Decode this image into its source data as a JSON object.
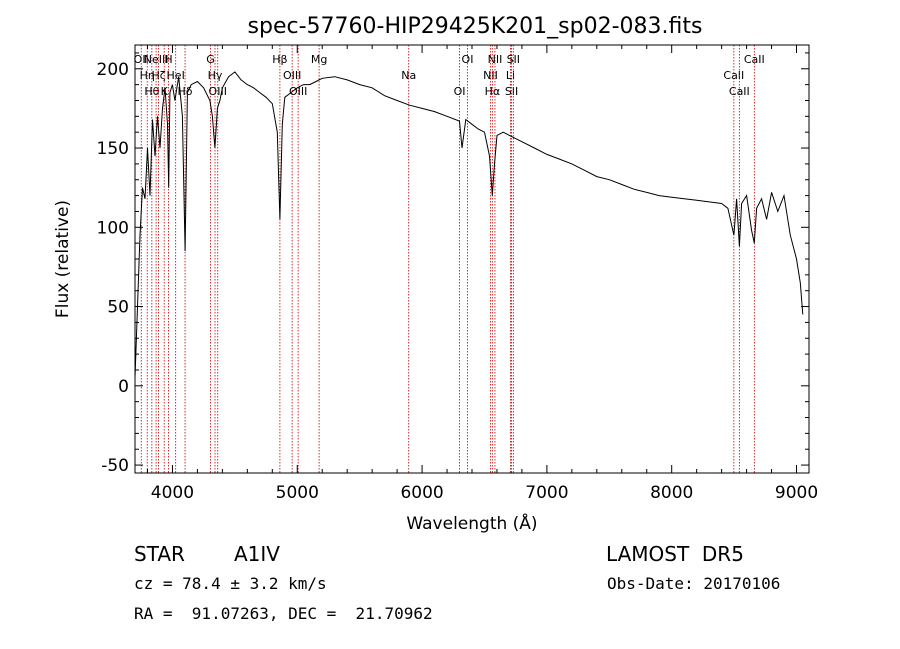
{
  "chart_data": {
    "type": "line",
    "title": "spec-57760-HIP29425K201_sp02-083.fits",
    "xlabel": "Wavelength (Å)",
    "ylabel": "Flux (relative)",
    "xlim": [
      3700,
      9100
    ],
    "ylim": [
      -55,
      215
    ],
    "xticks": [
      4000,
      5000,
      6000,
      7000,
      8000,
      9000
    ],
    "yticks": [
      -50,
      0,
      50,
      100,
      150,
      200
    ],
    "x_tick_labels": [
      "4000",
      "5000",
      "6000",
      "7000",
      "8000",
      "9000"
    ],
    "y_tick_labels": [
      "-50",
      "0",
      "50",
      "100",
      "150",
      "200"
    ],
    "grid": false,
    "line_color": "#000000",
    "marker_color": "#c00000",
    "series": [
      {
        "x": [
          3700,
          3720,
          3740,
          3760,
          3780,
          3800,
          3820,
          3840,
          3860,
          3880,
          3900,
          3920,
          3940,
          3960,
          3970,
          3980,
          4000,
          4020,
          4050,
          4080,
          4101,
          4120,
          4150,
          4200,
          4250,
          4300,
          4320,
          4340,
          4360,
          4380,
          4400,
          4450,
          4500,
          4550,
          4600,
          4650,
          4700,
          4750,
          4800,
          4840,
          4861,
          4880,
          4900,
          4950,
          5000,
          5050,
          5100,
          5150,
          5200,
          5300,
          5400,
          5500,
          5600,
          5700,
          5800,
          5900,
          6000,
          6100,
          6200,
          6300,
          6320,
          6350,
          6400,
          6450,
          6500,
          6540,
          6563,
          6580,
          6600,
          6650,
          6700,
          6800,
          6900,
          7000,
          7100,
          7200,
          7300,
          7400,
          7500,
          7600,
          7700,
          7800,
          7900,
          8000,
          8100,
          8200,
          8300,
          8400,
          8450,
          8498,
          8520,
          8542,
          8560,
          8600,
          8640,
          8662,
          8680,
          8720,
          8760,
          8800,
          8850,
          8900,
          8950,
          9000,
          9030,
          9050
        ],
        "y": [
          5,
          50,
          95,
          125,
          118,
          150,
          120,
          168,
          145,
          170,
          150,
          175,
          188,
          165,
          125,
          185,
          190,
          180,
          195,
          170,
          85,
          185,
          190,
          192,
          188,
          180,
          170,
          150,
          175,
          180,
          188,
          195,
          198,
          193,
          190,
          188,
          185,
          182,
          178,
          160,
          105,
          165,
          182,
          185,
          188,
          190,
          190,
          192,
          194,
          195,
          193,
          190,
          188,
          183,
          180,
          177,
          175,
          173,
          170,
          167,
          150,
          168,
          165,
          162,
          160,
          145,
          120,
          140,
          158,
          160,
          158,
          154,
          150,
          146,
          143,
          140,
          136,
          132,
          130,
          127,
          124,
          122,
          120,
          119,
          118,
          117,
          116,
          115,
          112,
          95,
          118,
          88,
          115,
          120,
          98,
          90,
          112,
          118,
          105,
          122,
          110,
          120,
          95,
          80,
          65,
          45
        ]
      }
    ],
    "line_markers": [
      {
        "wl": 3750,
        "label": "OII"
      },
      {
        "wl": 3798,
        "label": "Hη"
      },
      {
        "wl": 3835,
        "label": "Hθ"
      },
      {
        "wl": 3869,
        "label": "NeIII"
      },
      {
        "wl": 3889,
        "label": "Hζ"
      },
      {
        "wl": 3934,
        "label": "K"
      },
      {
        "wl": 3969,
        "label": "H"
      },
      {
        "wl": 4026,
        "label": "HeI"
      },
      {
        "wl": 4101,
        "label": "Hδ"
      },
      {
        "wl": 4305,
        "label": "G"
      },
      {
        "wl": 4341,
        "label": "Hγ"
      },
      {
        "wl": 4363,
        "label": "OIII"
      },
      {
        "wl": 4861,
        "label": "Hβ"
      },
      {
        "wl": 4959,
        "label": "OIII"
      },
      {
        "wl": 5007,
        "label": "OIII"
      },
      {
        "wl": 5175,
        "label": "Mg"
      },
      {
        "wl": 5893,
        "label": "Na"
      },
      {
        "wl": 6300,
        "label": "OI"
      },
      {
        "wl": 6364,
        "label": "OI"
      },
      {
        "wl": 6548,
        "label": "NII"
      },
      {
        "wl": 6563,
        "label": "Hα"
      },
      {
        "wl": 6584,
        "label": "NII"
      },
      {
        "wl": 6708,
        "label": "Li"
      },
      {
        "wl": 6717,
        "label": "SII"
      },
      {
        "wl": 6731,
        "label": "SII"
      },
      {
        "wl": 8498,
        "label": "CaII"
      },
      {
        "wl": 8542,
        "label": "CaII"
      },
      {
        "wl": 8662,
        "label": "CaII"
      }
    ]
  },
  "info": {
    "object_class": "STAR",
    "subclass": "A1IV",
    "survey": "LAMOST  DR5",
    "redshift": "cz = 78.4 ± 3.2 km/s",
    "obs_date": "Obs-Date: 20170106",
    "coordinates": "RA =  91.07263, DEC =  21.70962"
  }
}
